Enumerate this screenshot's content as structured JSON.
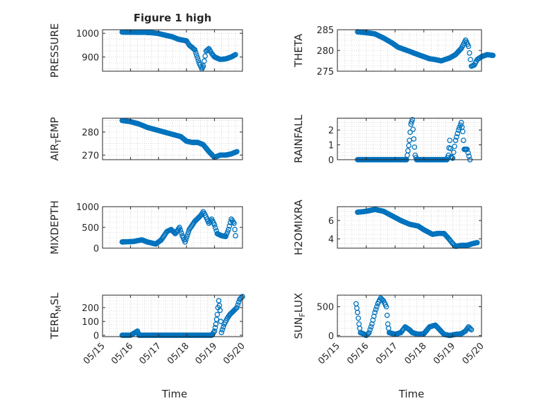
{
  "figure": {
    "title": "Figure 1 high"
  },
  "style": {
    "marker_color": "#0072BD",
    "axis_color": "#262626",
    "grid_color": "#bfbfbf"
  },
  "chart_data": [
    {
      "type": "scatter",
      "id": "pressure",
      "title": "Figure 1 high",
      "ylabel": "PRESSURE",
      "xlabel": "",
      "xlim": [
        0,
        5
      ],
      "ylim": [
        840,
        1015
      ],
      "yticks": [
        900,
        1000
      ],
      "ytick_labels": [
        "900",
        "1000"
      ],
      "xtick_labels": [],
      "series": [
        {
          "marker": "circle",
          "knots": [
            [
              0.7,
              1005
            ],
            [
              1.2,
              1004
            ],
            [
              1.5,
              1004
            ],
            [
              1.8,
              1002
            ],
            [
              2.0,
              999
            ],
            [
              2.2,
              993
            ],
            [
              2.5,
              985
            ],
            [
              2.7,
              975
            ],
            [
              3.0,
              968
            ],
            [
              3.1,
              950
            ],
            [
              3.3,
              930
            ],
            [
              3.45,
              875
            ],
            [
              3.55,
              850
            ],
            [
              3.6,
              862
            ],
            [
              3.7,
              925
            ],
            [
              3.8,
              935
            ],
            [
              3.9,
              915
            ],
            [
              4.0,
              900
            ],
            [
              4.2,
              890
            ],
            [
              4.4,
              892
            ],
            [
              4.6,
              900
            ],
            [
              4.75,
              910
            ]
          ]
        }
      ]
    },
    {
      "type": "scatter",
      "id": "theta",
      "ylabel": "THETA",
      "xlabel": "",
      "xlim": [
        0,
        5
      ],
      "ylim": [
        275,
        285
      ],
      "yticks": [
        275,
        280,
        285
      ],
      "ytick_labels": [
        "275",
        "280",
        "285"
      ],
      "xtick_labels": [],
      "series": [
        {
          "marker": "circle",
          "knots": [
            [
              0.7,
              284.5
            ],
            [
              1.1,
              284.2
            ],
            [
              1.3,
              284.0
            ],
            [
              1.6,
              283.0
            ],
            [
              1.9,
              281.8
            ],
            [
              2.1,
              280.8
            ],
            [
              2.5,
              279.8
            ],
            [
              2.8,
              279.0
            ],
            [
              3.0,
              278.5
            ],
            [
              3.2,
              278.0
            ],
            [
              3.4,
              277.8
            ],
            [
              3.6,
              277.5
            ],
            [
              3.9,
              278.2
            ],
            [
              4.1,
              279.0
            ],
            [
              4.3,
              280.5
            ],
            [
              4.45,
              282.5
            ],
            [
              4.55,
              281.0
            ],
            [
              4.65,
              276.2
            ],
            [
              4.75,
              276.5
            ],
            [
              4.85,
              277.8
            ],
            [
              5.0,
              278.5
            ],
            [
              5.2,
              279.0
            ],
            [
              5.4,
              278.8
            ]
          ]
        }
      ]
    },
    {
      "type": "scatter",
      "id": "air_temp",
      "ylabel": "AIR_TEMP",
      "xlabel": "",
      "xlim": [
        0,
        5
      ],
      "ylim": [
        268,
        286
      ],
      "yticks": [
        270,
        280
      ],
      "ytick_labels": [
        "270",
        "280"
      ],
      "xtick_labels": [],
      "series": [
        {
          "marker": "circle",
          "knots": [
            [
              0.7,
              285
            ],
            [
              1.0,
              284.5
            ],
            [
              1.3,
              283.5
            ],
            [
              1.6,
              282.0
            ],
            [
              1.9,
              281.0
            ],
            [
              2.2,
              280.0
            ],
            [
              2.5,
              279.0
            ],
            [
              2.8,
              278.0
            ],
            [
              3.0,
              276.0
            ],
            [
              3.2,
              275.5
            ],
            [
              3.4,
              275.5
            ],
            [
              3.6,
              274.5
            ],
            [
              3.8,
              271.5
            ],
            [
              4.0,
              269.0
            ],
            [
              4.2,
              270.0
            ],
            [
              4.4,
              270.0
            ],
            [
              4.6,
              270.5
            ],
            [
              4.8,
              271.5
            ]
          ]
        }
      ]
    },
    {
      "type": "scatter",
      "id": "rainfall",
      "ylabel": "RAINFALL",
      "xlabel": "",
      "xlim": [
        0,
        5
      ],
      "ylim": [
        0,
        2.8
      ],
      "yticks": [
        0,
        1,
        2
      ],
      "ytick_labels": [
        "0",
        "1",
        "2"
      ],
      "xtick_labels": [],
      "series": [
        {
          "marker": "circle",
          "knots": [
            [
              0.7,
              0
            ],
            [
              1.0,
              0
            ],
            [
              1.4,
              0
            ],
            [
              1.8,
              0
            ],
            [
              2.2,
              0
            ],
            [
              2.4,
              0
            ],
            [
              2.45,
              0.6
            ],
            [
              2.5,
              1.3
            ],
            [
              2.55,
              2.4
            ],
            [
              2.6,
              2.7
            ],
            [
              2.65,
              1.4
            ],
            [
              2.7,
              0.3
            ],
            [
              2.75,
              0
            ],
            [
              3.1,
              0
            ],
            [
              3.5,
              0
            ],
            [
              3.8,
              0
            ],
            [
              3.85,
              0.3
            ],
            [
              3.9,
              1.3
            ],
            [
              3.95,
              0.2
            ],
            [
              4.0,
              0.1
            ],
            [
              4.1,
              1.3
            ],
            [
              4.2,
              2.0
            ],
            [
              4.3,
              2.5
            ],
            [
              4.35,
              1.9
            ],
            [
              4.4,
              0.7
            ],
            [
              4.5,
              0.7
            ],
            [
              4.6,
              0
            ]
          ]
        }
      ]
    },
    {
      "type": "scatter",
      "id": "mixdepth",
      "ylabel": "MIXDEPTH",
      "xlabel": "",
      "xlim": [
        0,
        5
      ],
      "ylim": [
        0,
        1000
      ],
      "yticks": [
        0,
        500,
        1000
      ],
      "ytick_labels": [
        "0",
        "500",
        "1000"
      ],
      "xtick_labels": [],
      "series": [
        {
          "marker": "circle",
          "knots": [
            [
              0.7,
              150
            ],
            [
              1.1,
              160
            ],
            [
              1.4,
              200
            ],
            [
              1.6,
              150
            ],
            [
              1.9,
              100
            ],
            [
              2.1,
              200
            ],
            [
              2.3,
              400
            ],
            [
              2.45,
              450
            ],
            [
              2.6,
              350
            ],
            [
              2.75,
              500
            ],
            [
              2.85,
              300
            ],
            [
              2.95,
              150
            ],
            [
              3.1,
              450
            ],
            [
              3.3,
              650
            ],
            [
              3.5,
              780
            ],
            [
              3.6,
              880
            ],
            [
              3.7,
              750
            ],
            [
              3.8,
              600
            ],
            [
              3.9,
              700
            ],
            [
              4.0,
              560
            ],
            [
              4.1,
              350
            ],
            [
              4.25,
              300
            ],
            [
              4.4,
              280
            ],
            [
              4.5,
              450
            ],
            [
              4.6,
              700
            ],
            [
              4.7,
              600
            ],
            [
              4.75,
              300
            ]
          ]
        }
      ]
    },
    {
      "type": "scatter",
      "id": "h2omixra",
      "ylabel": "H2OMIXRA",
      "xlabel": "",
      "xlim": [
        0,
        5
      ],
      "ylim": [
        3,
        7.5
      ],
      "yticks": [
        4,
        6
      ],
      "ytick_labels": [
        "4",
        "6"
      ],
      "xtick_labels": [],
      "series": [
        {
          "marker": "circle",
          "knots": [
            [
              0.7,
              6.9
            ],
            [
              1.0,
              7.0
            ],
            [
              1.3,
              7.2
            ],
            [
              1.6,
              7.0
            ],
            [
              1.9,
              6.5
            ],
            [
              2.2,
              6.0
            ],
            [
              2.5,
              5.6
            ],
            [
              2.8,
              5.4
            ],
            [
              3.0,
              5.0
            ],
            [
              3.3,
              4.5
            ],
            [
              3.5,
              4.6
            ],
            [
              3.7,
              4.6
            ],
            [
              3.9,
              3.9
            ],
            [
              4.0,
              3.5
            ],
            [
              4.1,
              3.2
            ],
            [
              4.3,
              3.3
            ],
            [
              4.5,
              3.3
            ],
            [
              4.7,
              3.5
            ],
            [
              4.85,
              3.6
            ]
          ]
        }
      ]
    },
    {
      "type": "scatter",
      "id": "terr_msl",
      "ylabel": "TERR_MSL",
      "xlabel": "Time",
      "xlim": [
        0,
        5
      ],
      "ylim": [
        -10,
        290
      ],
      "yticks": [
        0,
        100,
        200
      ],
      "ytick_labels": [
        "0",
        "100",
        "200"
      ],
      "xtick_labels": [
        "05/15",
        "05/16",
        "05/17",
        "05/18",
        "05/19",
        "05/20"
      ],
      "series": [
        {
          "marker": "circle",
          "knots": [
            [
              0.7,
              0
            ],
            [
              1.0,
              0
            ],
            [
              1.25,
              30
            ],
            [
              1.3,
              0
            ],
            [
              1.8,
              0
            ],
            [
              2.4,
              0
            ],
            [
              3.0,
              0
            ],
            [
              3.5,
              0
            ],
            [
              3.9,
              0
            ],
            [
              4.0,
              30
            ],
            [
              4.05,
              80
            ],
            [
              4.1,
              150
            ],
            [
              4.15,
              250
            ],
            [
              4.2,
              180
            ],
            [
              4.25,
              20
            ],
            [
              4.35,
              80
            ],
            [
              4.45,
              120
            ],
            [
              4.55,
              150
            ],
            [
              4.7,
              180
            ],
            [
              4.8,
              200
            ],
            [
              4.9,
              260
            ],
            [
              5.0,
              280
            ]
          ]
        }
      ]
    },
    {
      "type": "scatter",
      "id": "sun_flux",
      "ylabel": "SUN_FLUX",
      "xlabel": "Time",
      "xlim": [
        0,
        5
      ],
      "ylim": [
        -20,
        700
      ],
      "yticks": [
        0,
        500
      ],
      "ytick_labels": [
        "0",
        "500"
      ],
      "xtick_labels": [
        "05/15",
        "05/16",
        "05/17",
        "05/18",
        "05/19",
        "05/20"
      ],
      "series": [
        {
          "marker": "circle",
          "knots": [
            [
              0.65,
              550
            ],
            [
              0.7,
              400
            ],
            [
              0.75,
              200
            ],
            [
              0.8,
              50
            ],
            [
              0.9,
              30
            ],
            [
              1.0,
              0
            ],
            [
              1.1,
              50
            ],
            [
              1.2,
              200
            ],
            [
              1.3,
              400
            ],
            [
              1.4,
              550
            ],
            [
              1.5,
              650
            ],
            [
              1.6,
              600
            ],
            [
              1.7,
              500
            ],
            [
              1.75,
              200
            ],
            [
              1.8,
              50
            ],
            [
              2.0,
              20
            ],
            [
              2.2,
              50
            ],
            [
              2.35,
              150
            ],
            [
              2.5,
              100
            ],
            [
              2.6,
              50
            ],
            [
              2.8,
              20
            ],
            [
              3.0,
              30
            ],
            [
              3.2,
              150
            ],
            [
              3.4,
              180
            ],
            [
              3.55,
              100
            ],
            [
              3.7,
              20
            ],
            [
              3.9,
              0
            ],
            [
              4.1,
              20
            ],
            [
              4.3,
              30
            ],
            [
              4.45,
              80
            ],
            [
              4.55,
              150
            ],
            [
              4.65,
              100
            ]
          ]
        }
      ]
    }
  ]
}
